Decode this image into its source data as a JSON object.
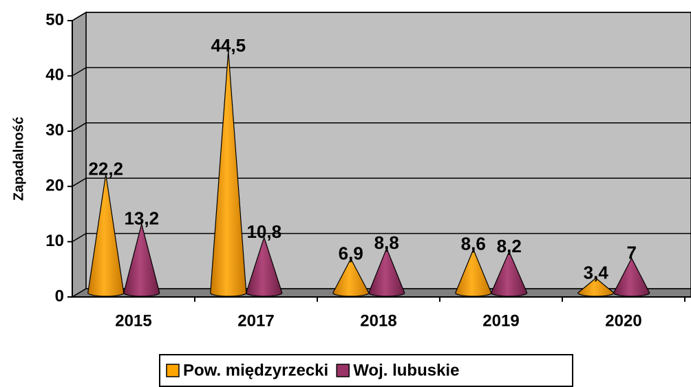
{
  "chart_data": {
    "type": "cone",
    "y_axis_label": "Zapadalność",
    "categories": [
      "2015",
      "2017",
      "2018",
      "2019",
      "2020"
    ],
    "series": [
      {
        "name": "Pow. międzyrzecki",
        "color": "#ffa500",
        "values": [
          22.2,
          44.5,
          6.9,
          8.6,
          3.4
        ],
        "value_labels": [
          "22,2",
          "44,5",
          "6,9",
          "8,6",
          "3,4"
        ]
      },
      {
        "name": "Woj. lubuskie",
        "color": "#993366",
        "values": [
          13.2,
          10.8,
          8.8,
          8.2,
          7
        ],
        "value_labels": [
          "13,2",
          "10,8",
          "8,8",
          "8,2",
          "7"
        ]
      }
    ],
    "ylim": [
      0,
      50
    ],
    "yticks": [
      0,
      10,
      20,
      30,
      40,
      50
    ],
    "grid": true,
    "legend": "bottom"
  }
}
